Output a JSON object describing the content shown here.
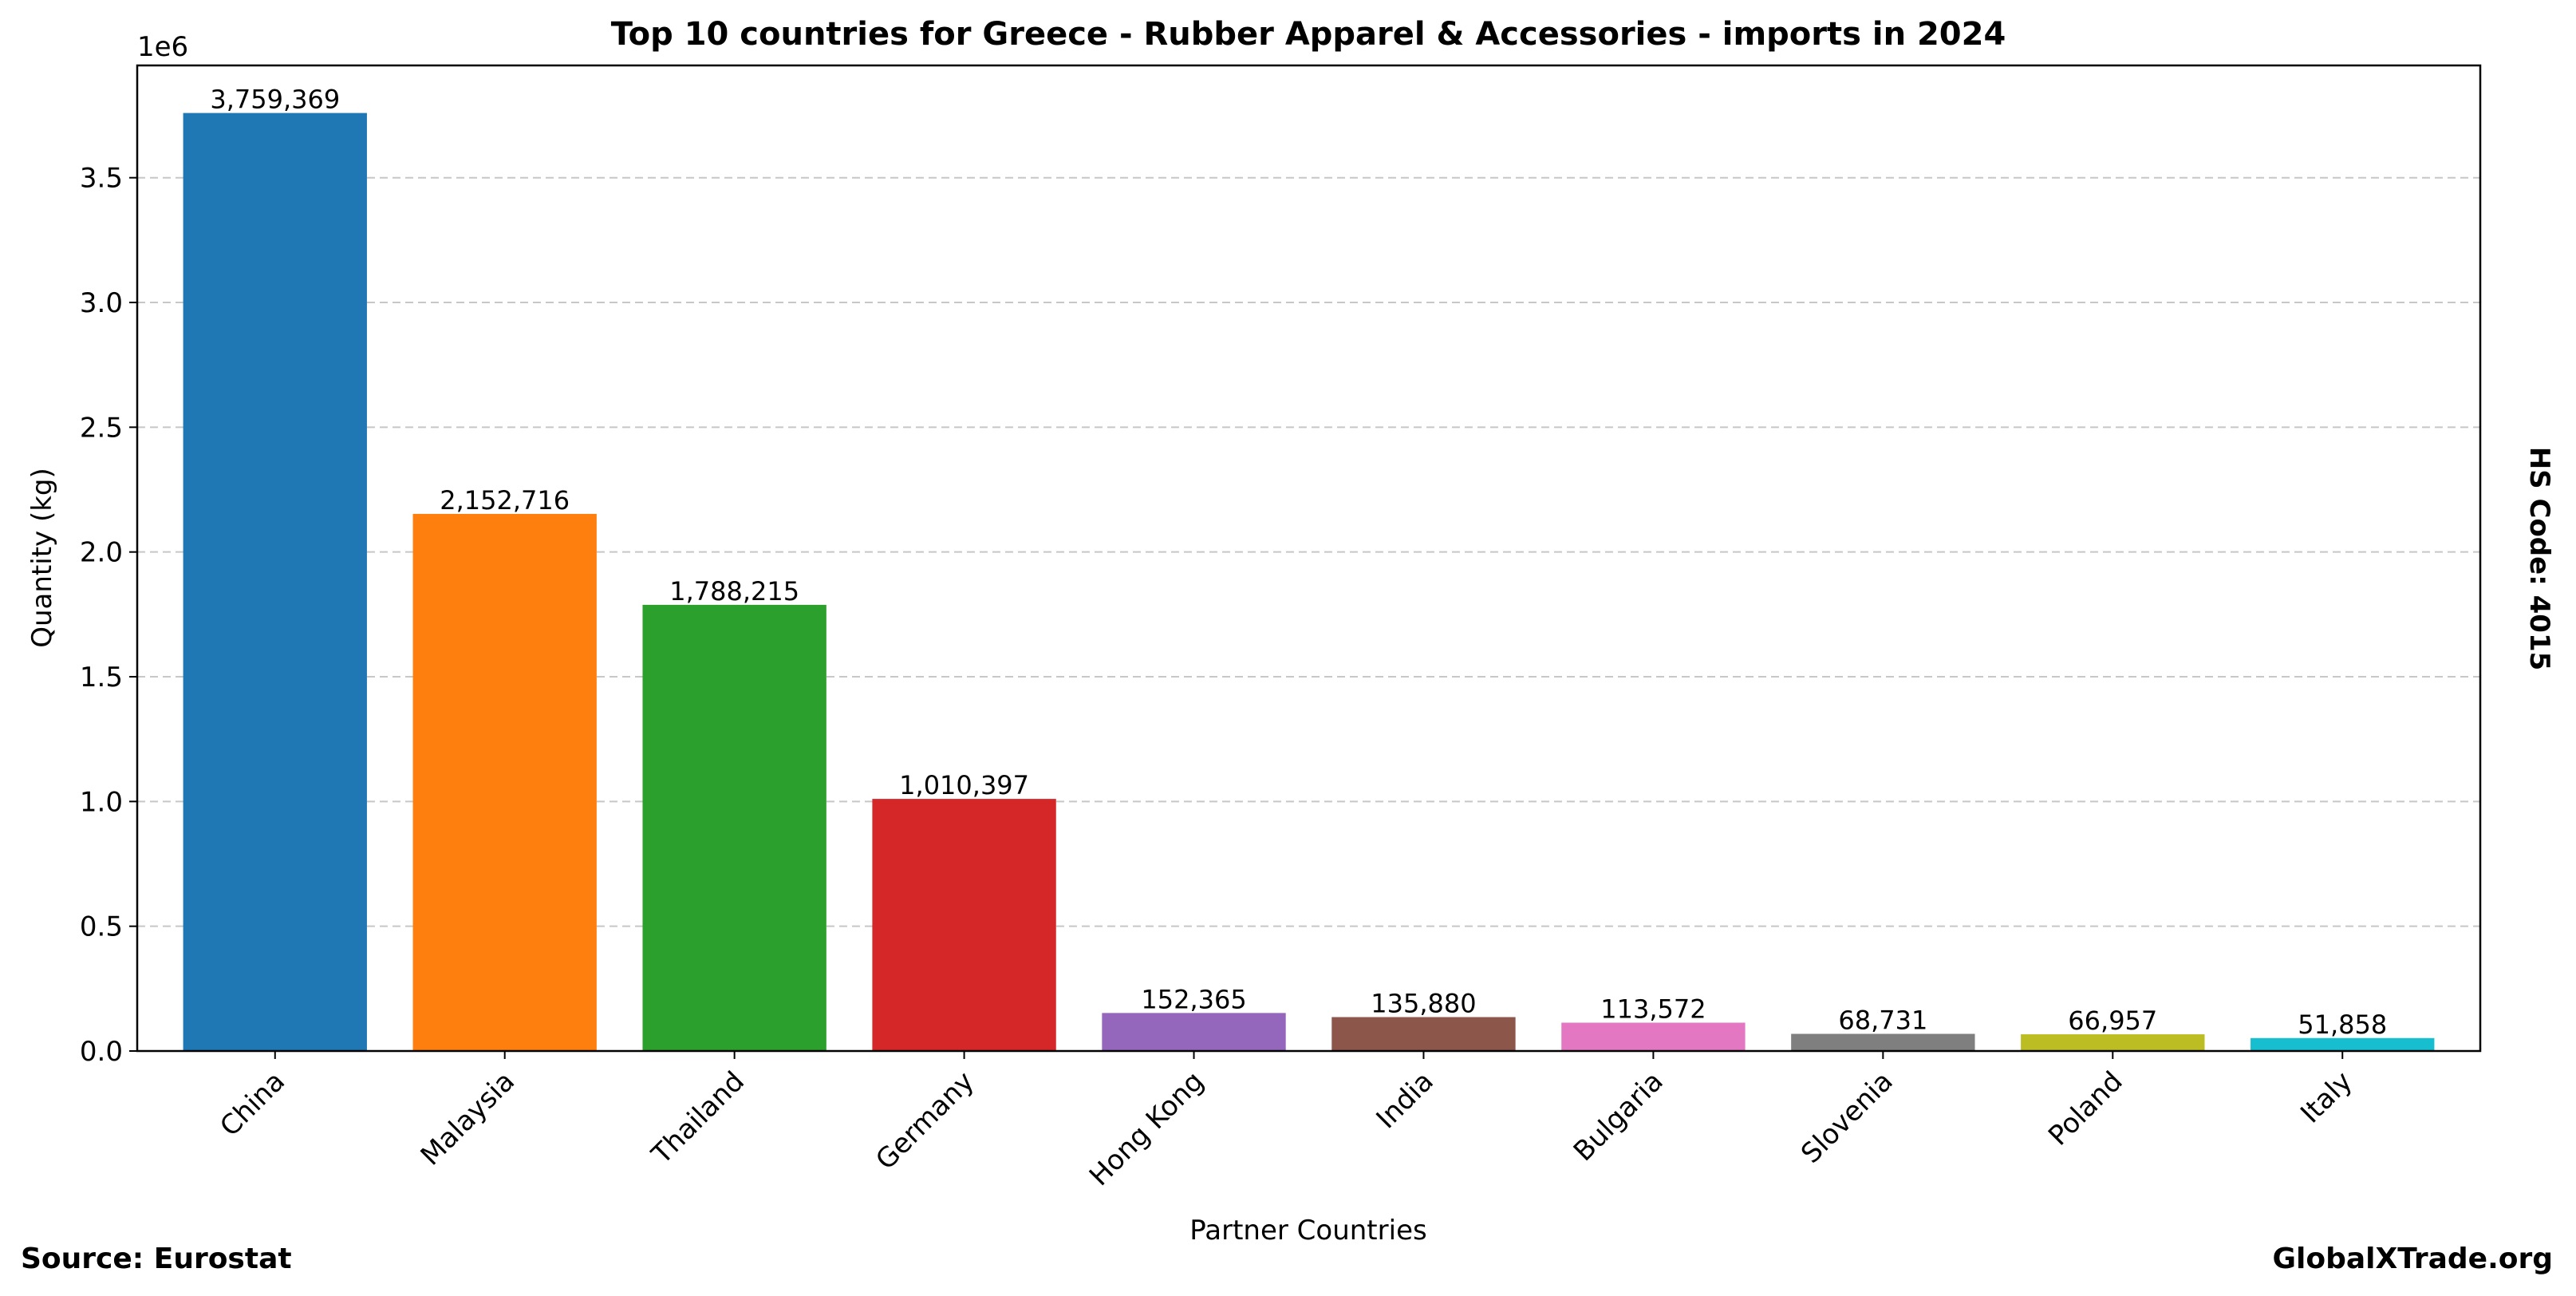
{
  "chart_data": {
    "type": "bar",
    "title": "Top 10 countries for Greece - Rubber Apparel & Accessories - imports in 2024",
    "xlabel": "Partner Countries",
    "ylabel": "Quantity (kg)",
    "y_offset_text": "1e6",
    "categories": [
      "China",
      "Malaysia",
      "Thailand",
      "Germany",
      "Hong Kong",
      "India",
      "Bulgaria",
      "Slovenia",
      "Poland",
      "Italy"
    ],
    "values": [
      3759369,
      2152716,
      1788215,
      1010397,
      152365,
      135880,
      113572,
      68731,
      66957,
      51858
    ],
    "value_labels": [
      "3,759,369",
      "2,152,716",
      "1,788,215",
      "1,010,397",
      "152,365",
      "135,880",
      "113,572",
      "68,731",
      "66,957",
      "51,858"
    ],
    "colors": [
      "#1f77b4",
      "#ff7f0e",
      "#2ca02c",
      "#d62728",
      "#9467bd",
      "#8c564b",
      "#e377c2",
      "#7f7f7f",
      "#bcbd22",
      "#17becf"
    ],
    "ylim": [
      0,
      3950000
    ],
    "yticks": [
      0,
      500000,
      1000000,
      1500000,
      2000000,
      2500000,
      3000000,
      3500000
    ],
    "ytick_labels": [
      "0.0",
      "0.5",
      "1.0",
      "1.5",
      "2.0",
      "2.5",
      "3.0",
      "3.5"
    ],
    "grid": "y dashed",
    "legend": "none"
  },
  "footer": {
    "source": "Source: Eurostat",
    "brand": "GlobalXTrade.org",
    "hs_code": "HS Code: 4015"
  }
}
